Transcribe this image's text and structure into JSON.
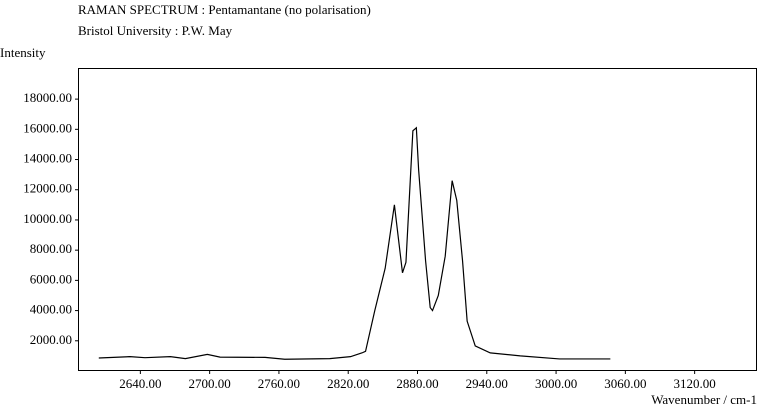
{
  "chart_data": {
    "type": "line",
    "title": "RAMAN SPECTRUM : Pentamantane (no polarisation)",
    "subtitle": "Bristol University : P.W. May",
    "y_label": "Intensity",
    "x_label": "Wavenumber / cm-1",
    "color": "#000000",
    "x": [
      2604,
      2631,
      2644,
      2666,
      2679,
      2698,
      2709,
      2748,
      2765,
      2804,
      2822,
      2832,
      2835,
      2843,
      2852,
      2860,
      2867,
      2870,
      2876,
      2879,
      2881,
      2887,
      2891,
      2893,
      2898,
      2904,
      2910,
      2914,
      2919,
      2923,
      2930,
      2943,
      2969,
      3003,
      3047
    ],
    "values": [
      860,
      950,
      880,
      950,
      820,
      1100,
      920,
      900,
      780,
      820,
      950,
      1200,
      1300,
      4000,
      6800,
      11000,
      6500,
      7200,
      15900,
      16100,
      13300,
      7300,
      4200,
      4000,
      5000,
      7600,
      12600,
      11300,
      7300,
      3300,
      1660,
      1200,
      1000,
      800,
      800
    ],
    "xlim": [
      2586,
      3174
    ],
    "ylim": [
      0,
      20060
    ],
    "xticks": [
      {
        "value": 2640,
        "label": "2640.00"
      },
      {
        "value": 2700,
        "label": "2700.00"
      },
      {
        "value": 2760,
        "label": "2760.00"
      },
      {
        "value": 2820,
        "label": "2820.00"
      },
      {
        "value": 2880,
        "label": "2880.00"
      },
      {
        "value": 2940,
        "label": "2940.00"
      },
      {
        "value": 3000,
        "label": "3000.00"
      },
      {
        "value": 3060,
        "label": "3060.00"
      },
      {
        "value": 3120,
        "label": "3120.00"
      }
    ],
    "yticks": [
      {
        "value": 2000,
        "label": "2000.00"
      },
      {
        "value": 4000,
        "label": "4000.00"
      },
      {
        "value": 6000,
        "label": "6000.00"
      },
      {
        "value": 8000,
        "label": "8000.00"
      },
      {
        "value": 10000,
        "label": "10000.00"
      },
      {
        "value": 12000,
        "label": "12000.00"
      },
      {
        "value": 14000,
        "label": "14000.00"
      },
      {
        "value": 16000,
        "label": "16000.00"
      },
      {
        "value": 18000,
        "label": "18000.00"
      }
    ],
    "grid": false
  }
}
